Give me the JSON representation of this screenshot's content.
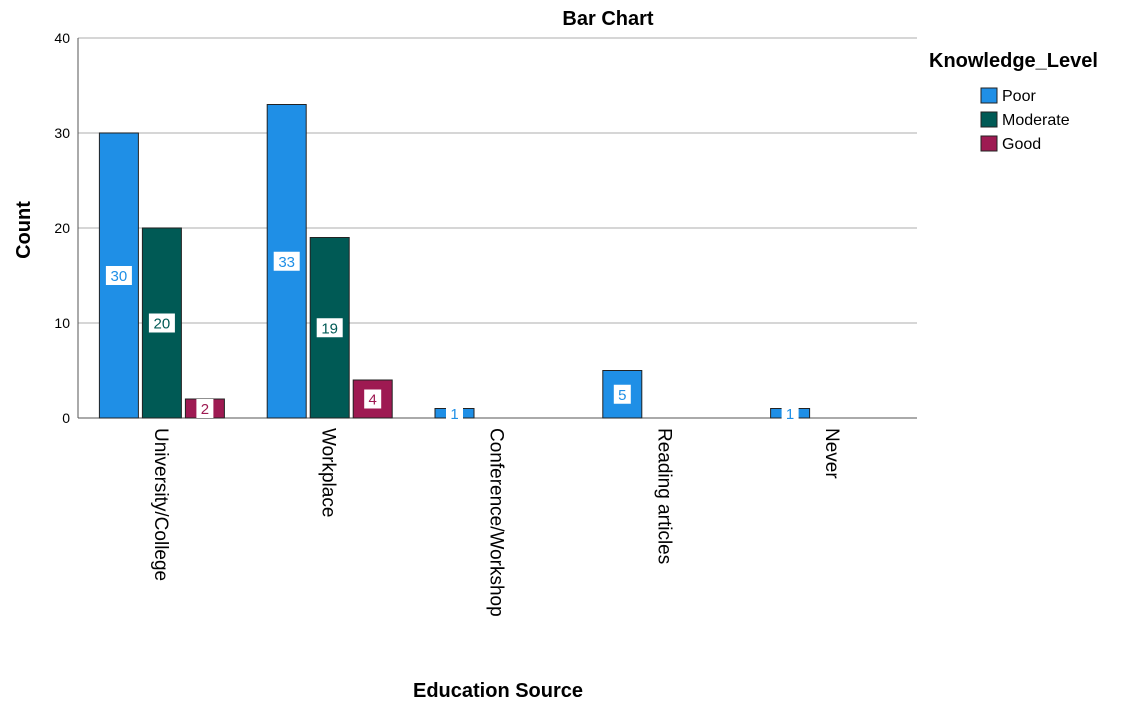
{
  "chart_data": {
    "type": "bar",
    "title": "Bar Chart",
    "xlabel": "Education Source",
    "ylabel": "Count",
    "ylim": [
      0,
      40
    ],
    "yticks": [
      0,
      10,
      20,
      30,
      40
    ],
    "grid": true,
    "legend_title": "Knowledge_Level",
    "legend_position": "top-right",
    "categories": [
      "University/College",
      "Workplace",
      "Conference/Workshop",
      "Reading articles",
      "Never"
    ],
    "series": [
      {
        "name": "Poor",
        "color": "#1f8fe6",
        "label_color": "#1f8fe6",
        "values": [
          30,
          33,
          1,
          5,
          1
        ]
      },
      {
        "name": "Moderate",
        "color": "#005a55",
        "label_color": "#005a55",
        "values": [
          20,
          19,
          null,
          null,
          null
        ]
      },
      {
        "name": "Good",
        "color": "#9e1a52",
        "label_color": "#9e1a52",
        "values": [
          2,
          4,
          null,
          null,
          null
        ]
      }
    ]
  }
}
